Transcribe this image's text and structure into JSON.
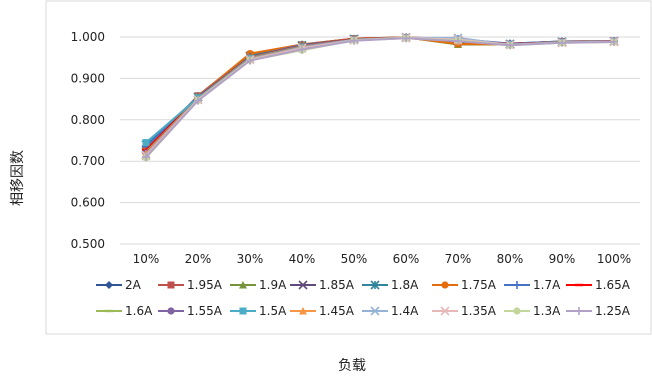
{
  "chart_data": {
    "type": "line",
    "title": "",
    "xlabel": "负载",
    "ylabel": "相移因数",
    "categories": [
      "10%",
      "20%",
      "30%",
      "40%",
      "50%",
      "60%",
      "70%",
      "80%",
      "90%",
      "100%"
    ],
    "yticks": [
      "0.500",
      "0.600",
      "0.700",
      "0.800",
      "0.900",
      "1.000"
    ],
    "ylim": [
      0.5,
      1.0
    ],
    "grid": true,
    "legend": "bottom",
    "series": [
      {
        "name": "2A",
        "color": "#2f5597",
        "marker": "diamond",
        "values": [
          0.725,
          0.858,
          0.958,
          0.982,
          0.996,
          0.999,
          0.985,
          0.984,
          0.989,
          0.99
        ]
      },
      {
        "name": "1.95A",
        "color": "#c0504d",
        "marker": "square",
        "values": [
          0.724,
          0.858,
          0.957,
          0.981,
          0.996,
          0.999,
          0.983,
          0.983,
          0.989,
          0.99
        ]
      },
      {
        "name": "1.9A",
        "color": "#77933c",
        "marker": "triangle",
        "values": [
          0.73,
          0.856,
          0.955,
          0.98,
          0.995,
          0.999,
          0.982,
          0.982,
          0.988,
          0.99
        ]
      },
      {
        "name": "1.85A",
        "color": "#604a7b",
        "marker": "x",
        "values": [
          0.728,
          0.855,
          0.953,
          0.979,
          0.995,
          0.999,
          0.99,
          0.983,
          0.988,
          0.99
        ]
      },
      {
        "name": "1.8A",
        "color": "#31859c",
        "marker": "star",
        "values": [
          0.74,
          0.855,
          0.954,
          0.98,
          0.995,
          0.998,
          0.992,
          0.983,
          0.988,
          0.989
        ]
      },
      {
        "name": "1.75A",
        "color": "#e46c0a",
        "marker": "circle",
        "values": [
          0.732,
          0.857,
          0.96,
          0.982,
          0.996,
          0.999,
          0.983,
          0.982,
          0.988,
          0.989
        ]
      },
      {
        "name": "1.7A",
        "color": "#4472c4",
        "marker": "plus",
        "values": [
          0.735,
          0.856,
          0.952,
          0.981,
          0.995,
          0.999,
          0.995,
          0.984,
          0.989,
          0.99
        ]
      },
      {
        "name": "1.65A",
        "color": "#ff0000",
        "marker": "dash",
        "values": [
          0.727,
          0.854,
          0.951,
          0.979,
          0.995,
          0.999,
          0.994,
          0.983,
          0.988,
          0.99
        ]
      },
      {
        "name": "1.6A",
        "color": "#9bbb59",
        "marker": "dash",
        "values": [
          0.722,
          0.852,
          0.95,
          0.978,
          0.994,
          0.999,
          0.993,
          0.982,
          0.988,
          0.989
        ]
      },
      {
        "name": "1.55A",
        "color": "#8064a2",
        "marker": "circle",
        "values": [
          0.72,
          0.851,
          0.949,
          0.977,
          0.994,
          0.998,
          0.992,
          0.982,
          0.987,
          0.989
        ]
      },
      {
        "name": "1.5A",
        "color": "#4bacc6",
        "marker": "square",
        "values": [
          0.745,
          0.853,
          0.948,
          0.976,
          0.993,
          0.998,
          0.991,
          0.982,
          0.987,
          0.989
        ]
      },
      {
        "name": "1.45A",
        "color": "#f79646",
        "marker": "triangle",
        "values": [
          0.718,
          0.85,
          0.947,
          0.975,
          0.993,
          0.998,
          0.99,
          0.981,
          0.987,
          0.989
        ]
      },
      {
        "name": "1.4A",
        "color": "#95b3d7",
        "marker": "x",
        "values": [
          0.715,
          0.849,
          0.946,
          0.974,
          0.993,
          0.998,
          0.998,
          0.981,
          0.987,
          0.989
        ]
      },
      {
        "name": "1.35A",
        "color": "#e6b9b8",
        "marker": "x",
        "values": [
          0.713,
          0.848,
          0.945,
          0.973,
          0.992,
          0.998,
          0.994,
          0.981,
          0.986,
          0.988
        ]
      },
      {
        "name": "1.3A",
        "color": "#c3d69b",
        "marker": "circle",
        "values": [
          0.708,
          0.847,
          0.944,
          0.968,
          0.992,
          0.997,
          0.992,
          0.98,
          0.986,
          0.988
        ]
      },
      {
        "name": "1.25A",
        "color": "#b2a1c7",
        "marker": "plus",
        "values": [
          0.71,
          0.846,
          0.943,
          0.97,
          0.991,
          0.997,
          0.99,
          0.98,
          0.986,
          0.988
        ]
      }
    ]
  }
}
